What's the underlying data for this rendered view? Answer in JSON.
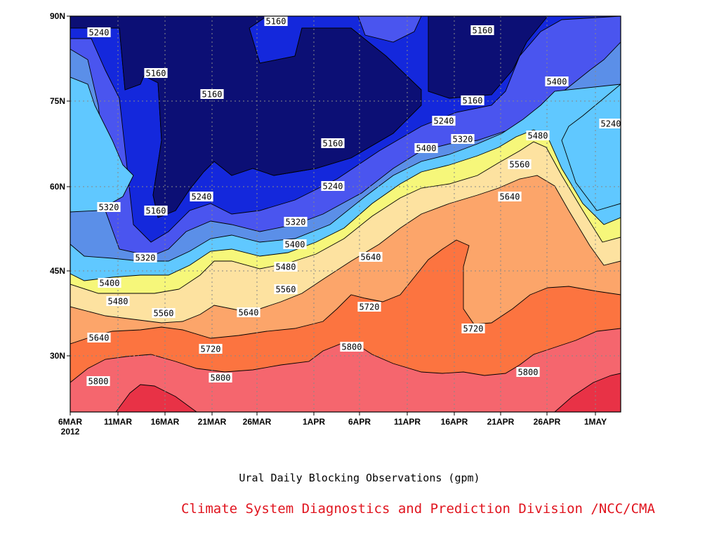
{
  "chart_data": {
    "type": "contour",
    "title": "Ural Daily Blocking Observations (gpm)",
    "credit": "Climate System Diagnostics and Prediction Division /NCC/CMA",
    "x_ticks": [
      "6MAR",
      "11MAR",
      "16MAR",
      "21MAR",
      "26MAR",
      "1APR",
      "6APR",
      "11APR",
      "16APR",
      "21APR",
      "26APR",
      "1MAY"
    ],
    "x_year_label": "2012",
    "y_ticks": [
      "90N",
      "75N",
      "60N",
      "45N",
      "30N"
    ],
    "ylim": [
      20,
      90
    ],
    "grid": "dotted",
    "contour_levels": [
      5160,
      5240,
      5320,
      5400,
      5480,
      5560,
      5640,
      5720,
      5800,
      5880
    ],
    "fill_colors": [
      "#0c0f75",
      "#1428dc",
      "#4a55ef",
      "#5b8fe8",
      "#60c8ff",
      "#f6f77a",
      "#fde2a0",
      "#fca56a",
      "#fc7440",
      "#f5666e",
      "#e83246"
    ],
    "contour_labels": [
      {
        "value": "5160"
      },
      {
        "value": "5160"
      },
      {
        "value": "5160"
      },
      {
        "value": "5160"
      },
      {
        "value": "5160"
      },
      {
        "value": "5160"
      },
      {
        "value": "5160"
      },
      {
        "value": "5240"
      },
      {
        "value": "5240"
      },
      {
        "value": "5240"
      },
      {
        "value": "5240"
      },
      {
        "value": "5240"
      },
      {
        "value": "5320"
      },
      {
        "value": "5320"
      },
      {
        "value": "5320"
      },
      {
        "value": "5320"
      },
      {
        "value": "5400"
      },
      {
        "value": "5400"
      },
      {
        "value": "5400"
      },
      {
        "value": "5400"
      },
      {
        "value": "5480"
      },
      {
        "value": "5480"
      },
      {
        "value": "5480"
      },
      {
        "value": "5560"
      },
      {
        "value": "5560"
      },
      {
        "value": "5560"
      },
      {
        "value": "5640"
      },
      {
        "value": "5640"
      },
      {
        "value": "5640"
      },
      {
        "value": "5640"
      },
      {
        "value": "5720"
      },
      {
        "value": "5720"
      },
      {
        "value": "5720"
      },
      {
        "value": "5800"
      },
      {
        "value": "5800"
      },
      {
        "value": "5800"
      },
      {
        "value": "5800"
      }
    ]
  }
}
